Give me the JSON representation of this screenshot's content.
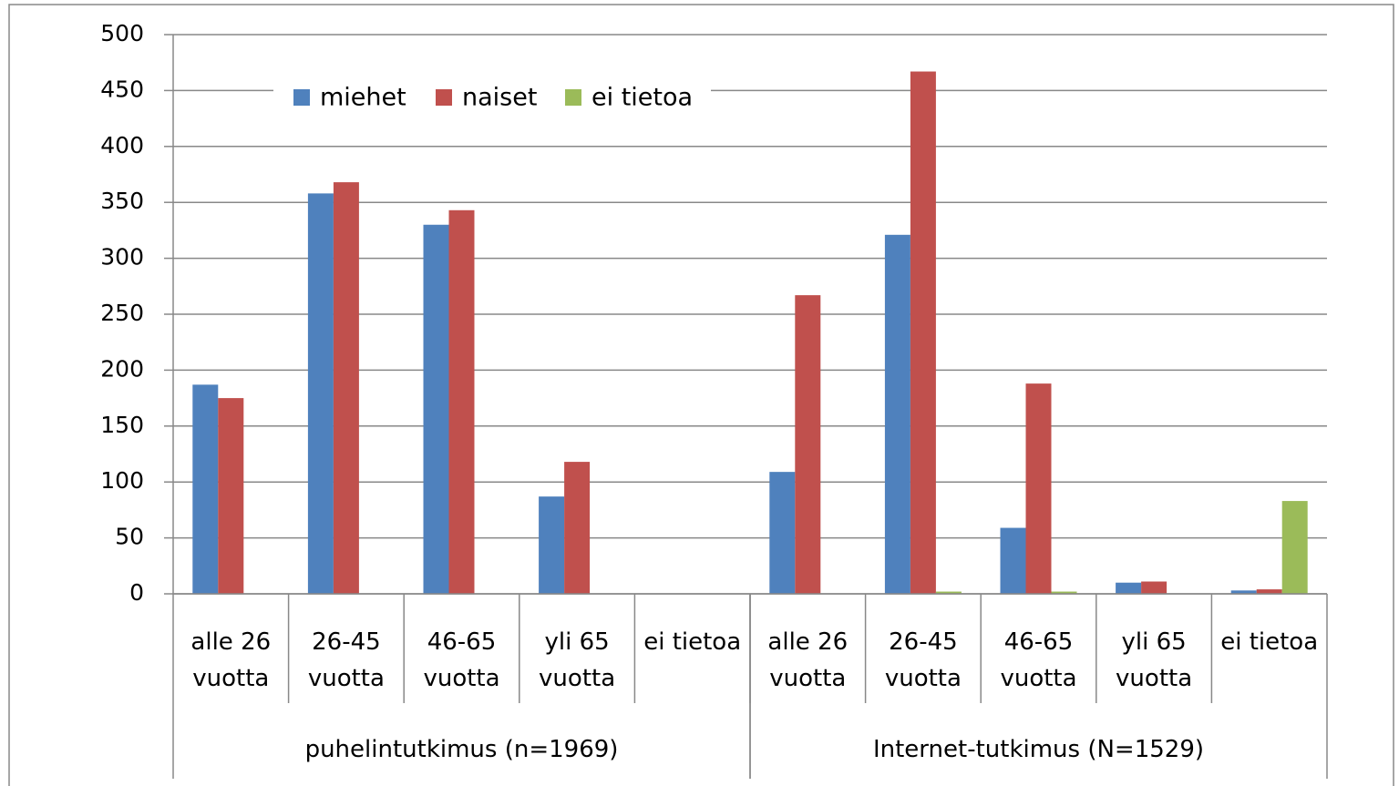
{
  "chart_data": {
    "type": "bar",
    "groups": [
      {
        "label": "puhelintutkimus (n=1969)",
        "categories": [
          "alle 26 vuotta",
          "26-45 vuotta",
          "46-65 vuotta",
          "yli 65 vuotta",
          "ei tietoa"
        ]
      },
      {
        "label": "Internet-tutkimus (N=1529)",
        "categories": [
          "alle 26 vuotta",
          "26-45 vuotta",
          "46-65 vuotta",
          "yli 65 vuotta",
          "ei tietoa"
        ]
      }
    ],
    "series": [
      {
        "name": "miehet",
        "color": "#4f81bd",
        "values": [
          187,
          358,
          330,
          87,
          0,
          109,
          321,
          59,
          10,
          3
        ]
      },
      {
        "name": "naiset",
        "color": "#c0504d",
        "values": [
          175,
          368,
          343,
          118,
          0,
          267,
          467,
          188,
          11,
          4
        ]
      },
      {
        "name": "ei tietoa",
        "color": "#9bbb59",
        "values": [
          0,
          0,
          0,
          0,
          0,
          0,
          2,
          2,
          0,
          83
        ]
      }
    ],
    "ylim": [
      0,
      500
    ],
    "yticks": [
      0,
      50,
      100,
      150,
      200,
      250,
      300,
      350,
      400,
      450,
      500
    ],
    "grid": true,
    "legend": "top"
  }
}
